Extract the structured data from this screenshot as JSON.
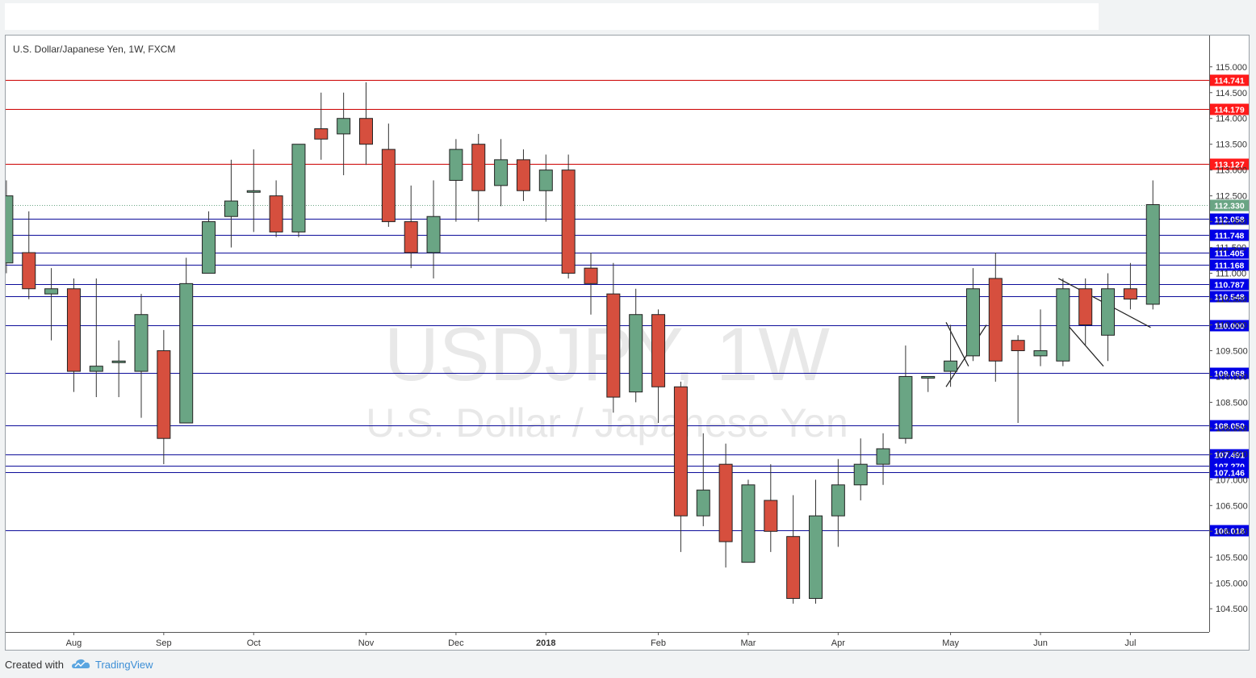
{
  "header": {
    "chart_title": "U.S. Dollar/Japanese Yen, 1W, FXCM"
  },
  "watermark": {
    "line1": "USDJPY, 1W",
    "line2": "U.S. Dollar / Japanese Yen"
  },
  "footer": {
    "created_with": "Created with",
    "brand": "TradingView"
  },
  "colors": {
    "bull": "#6aa584",
    "bear": "#d64f3e",
    "resistance_line": "#cc0000",
    "level_line": "#0d0d9a",
    "price_tag_red": "#ff1a1a",
    "price_tag_blue": "#0000e6",
    "price_tag_current": "#6aa584"
  },
  "chart_data": {
    "type": "candlestick",
    "title": "U.S. Dollar/Japanese Yen, 1W, FXCM",
    "symbol": "USDJPY",
    "interval": "1W",
    "ylim": [
      104.05,
      115.45
    ],
    "y_ticks": [
      "104.500",
      "105.000",
      "105.500",
      "106.000",
      "106.500",
      "107.000",
      "107.500",
      "108.000",
      "108.500",
      "109.000",
      "109.500",
      "110.000",
      "110.500",
      "111.000",
      "111.500",
      "112.000",
      "112.500",
      "113.000",
      "113.500",
      "114.000",
      "114.500",
      "115.000"
    ],
    "x_tick_labels": [
      {
        "label": "Aug",
        "week": 3
      },
      {
        "label": "Sep",
        "week": 7
      },
      {
        "label": "Oct",
        "week": 11
      },
      {
        "label": "Nov",
        "week": 16
      },
      {
        "label": "Dec",
        "week": 20
      },
      {
        "label": "2018",
        "week": 24
      },
      {
        "label": "Feb",
        "week": 29
      },
      {
        "label": "Mar",
        "week": 33
      },
      {
        "label": "Apr",
        "week": 37
      },
      {
        "label": "May",
        "week": 42
      },
      {
        "label": "Jun",
        "week": 46
      },
      {
        "label": "Jul",
        "week": 50
      }
    ],
    "candles": [
      {
        "o": 111.2,
        "h": 112.8,
        "l": 111.0,
        "c": 112.5
      },
      {
        "o": 111.4,
        "h": 112.2,
        "l": 110.5,
        "c": 110.7
      },
      {
        "o": 110.6,
        "h": 111.1,
        "l": 109.7,
        "c": 110.7
      },
      {
        "o": 110.7,
        "h": 110.9,
        "l": 108.7,
        "c": 109.1
      },
      {
        "o": 109.1,
        "h": 110.9,
        "l": 108.6,
        "c": 109.2
      },
      {
        "o": 109.3,
        "h": 109.7,
        "l": 108.6,
        "c": 109.3
      },
      {
        "o": 109.1,
        "h": 110.6,
        "l": 108.2,
        "c": 110.2
      },
      {
        "o": 109.5,
        "h": 109.9,
        "l": 107.3,
        "c": 107.8
      },
      {
        "o": 108.1,
        "h": 111.3,
        "l": 108.1,
        "c": 110.8
      },
      {
        "o": 111.0,
        "h": 112.2,
        "l": 111.0,
        "c": 112.0
      },
      {
        "o": 112.1,
        "h": 113.2,
        "l": 111.5,
        "c": 112.4
      },
      {
        "o": 112.6,
        "h": 113.4,
        "l": 111.8,
        "c": 112.6
      },
      {
        "o": 112.5,
        "h": 112.8,
        "l": 111.7,
        "c": 111.8
      },
      {
        "o": 111.8,
        "h": 113.5,
        "l": 111.7,
        "c": 113.5
      },
      {
        "o": 113.8,
        "h": 114.5,
        "l": 113.2,
        "c": 113.6
      },
      {
        "o": 113.7,
        "h": 114.5,
        "l": 112.9,
        "c": 114.0
      },
      {
        "o": 114.0,
        "h": 114.7,
        "l": 113.1,
        "c": 113.5
      },
      {
        "o": 113.4,
        "h": 113.9,
        "l": 111.9,
        "c": 112.0
      },
      {
        "o": 112.0,
        "h": 112.7,
        "l": 111.1,
        "c": 111.4
      },
      {
        "o": 111.4,
        "h": 112.8,
        "l": 110.9,
        "c": 112.1
      },
      {
        "o": 112.8,
        "h": 113.6,
        "l": 112.0,
        "c": 113.4
      },
      {
        "o": 113.5,
        "h": 113.7,
        "l": 112.0,
        "c": 112.6
      },
      {
        "o": 112.7,
        "h": 113.6,
        "l": 112.3,
        "c": 113.2
      },
      {
        "o": 113.2,
        "h": 113.4,
        "l": 112.4,
        "c": 112.6
      },
      {
        "o": 112.6,
        "h": 113.3,
        "l": 112.0,
        "c": 113.0
      },
      {
        "o": 113.0,
        "h": 113.3,
        "l": 110.9,
        "c": 111.0
      },
      {
        "o": 111.1,
        "h": 111.4,
        "l": 110.2,
        "c": 110.8
      },
      {
        "o": 110.6,
        "h": 111.2,
        "l": 108.3,
        "c": 108.6
      },
      {
        "o": 108.7,
        "h": 110.7,
        "l": 108.5,
        "c": 110.2
      },
      {
        "o": 110.2,
        "h": 110.3,
        "l": 108.1,
        "c": 108.8
      },
      {
        "o": 108.8,
        "h": 108.9,
        "l": 105.6,
        "c": 106.3
      },
      {
        "o": 106.3,
        "h": 107.9,
        "l": 106.1,
        "c": 106.8
      },
      {
        "o": 107.3,
        "h": 107.7,
        "l": 105.3,
        "c": 105.8
      },
      {
        "o": 105.4,
        "h": 107.0,
        "l": 105.4,
        "c": 106.9
      },
      {
        "o": 106.6,
        "h": 107.3,
        "l": 105.6,
        "c": 106.0
      },
      {
        "o": 105.9,
        "h": 106.7,
        "l": 104.6,
        "c": 104.7
      },
      {
        "o": 104.7,
        "h": 107.0,
        "l": 104.6,
        "c": 106.3
      },
      {
        "o": 106.3,
        "h": 107.4,
        "l": 105.7,
        "c": 106.9
      },
      {
        "o": 106.9,
        "h": 107.8,
        "l": 106.6,
        "c": 107.3
      },
      {
        "o": 107.3,
        "h": 107.9,
        "l": 106.9,
        "c": 107.6
      },
      {
        "o": 107.8,
        "h": 109.6,
        "l": 107.7,
        "c": 109.0
      },
      {
        "o": 109.0,
        "h": 109.0,
        "l": 108.7,
        "c": 109.0
      },
      {
        "o": 109.1,
        "h": 110.0,
        "l": 108.8,
        "c": 109.3
      },
      {
        "o": 109.4,
        "h": 111.1,
        "l": 109.3,
        "c": 110.7
      },
      {
        "o": 110.9,
        "h": 111.4,
        "l": 108.9,
        "c": 109.3
      },
      {
        "o": 109.7,
        "h": 109.8,
        "l": 108.1,
        "c": 109.5
      },
      {
        "o": 109.4,
        "h": 110.3,
        "l": 109.2,
        "c": 109.5
      },
      {
        "o": 109.3,
        "h": 110.9,
        "l": 109.2,
        "c": 110.7
      },
      {
        "o": 110.7,
        "h": 110.9,
        "l": 109.6,
        "c": 110.0
      },
      {
        "o": 109.8,
        "h": 111.0,
        "l": 109.3,
        "c": 110.7
      },
      {
        "o": 110.7,
        "h": 111.2,
        "l": 110.3,
        "c": 110.5
      },
      {
        "o": 110.4,
        "h": 112.8,
        "l": 110.3,
        "c": 112.33
      }
    ],
    "horizontal_levels": [
      {
        "price": 114.741,
        "label": "114.741",
        "kind": "resistance"
      },
      {
        "price": 114.179,
        "label": "114.179",
        "kind": "resistance"
      },
      {
        "price": 113.127,
        "label": "113.127",
        "kind": "resistance"
      },
      {
        "price": 112.058,
        "label": "112.058",
        "kind": "level"
      },
      {
        "price": 111.748,
        "label": "111.748",
        "kind": "level"
      },
      {
        "price": 111.405,
        "label": "111.405",
        "kind": "level"
      },
      {
        "price": 111.168,
        "label": "111.168",
        "kind": "level"
      },
      {
        "price": 110.787,
        "label": "110.787",
        "kind": "level"
      },
      {
        "price": 110.548,
        "label": "110.548",
        "kind": "level"
      },
      {
        "price": 110.0,
        "label": "110.000",
        "kind": "level"
      },
      {
        "price": 109.068,
        "label": "109.068",
        "kind": "level"
      },
      {
        "price": 108.05,
        "label": "108.050",
        "kind": "level"
      },
      {
        "price": 107.491,
        "label": "107.491",
        "kind": "level"
      },
      {
        "price": 107.27,
        "label": "107.270",
        "kind": "level"
      },
      {
        "price": 107.146,
        "label": "107.146",
        "kind": "level"
      },
      {
        "price": 106.018,
        "label": "106.018",
        "kind": "level"
      }
    ],
    "current_price": {
      "price": 112.33,
      "label": "112.330"
    },
    "trendlines": [
      {
        "from": {
          "week": 41.8,
          "price": 110.05
        },
        "to": {
          "week": 42.8,
          "price": 109.2
        }
      },
      {
        "from": {
          "week": 41.8,
          "price": 108.8
        },
        "to": {
          "week": 43.6,
          "price": 110.0
        }
      },
      {
        "from": {
          "week": 46.8,
          "price": 110.9
        },
        "to": {
          "week": 50.9,
          "price": 109.95
        }
      },
      {
        "from": {
          "week": 47.1,
          "price": 110.05
        },
        "to": {
          "week": 48.8,
          "price": 109.2
        }
      }
    ]
  }
}
